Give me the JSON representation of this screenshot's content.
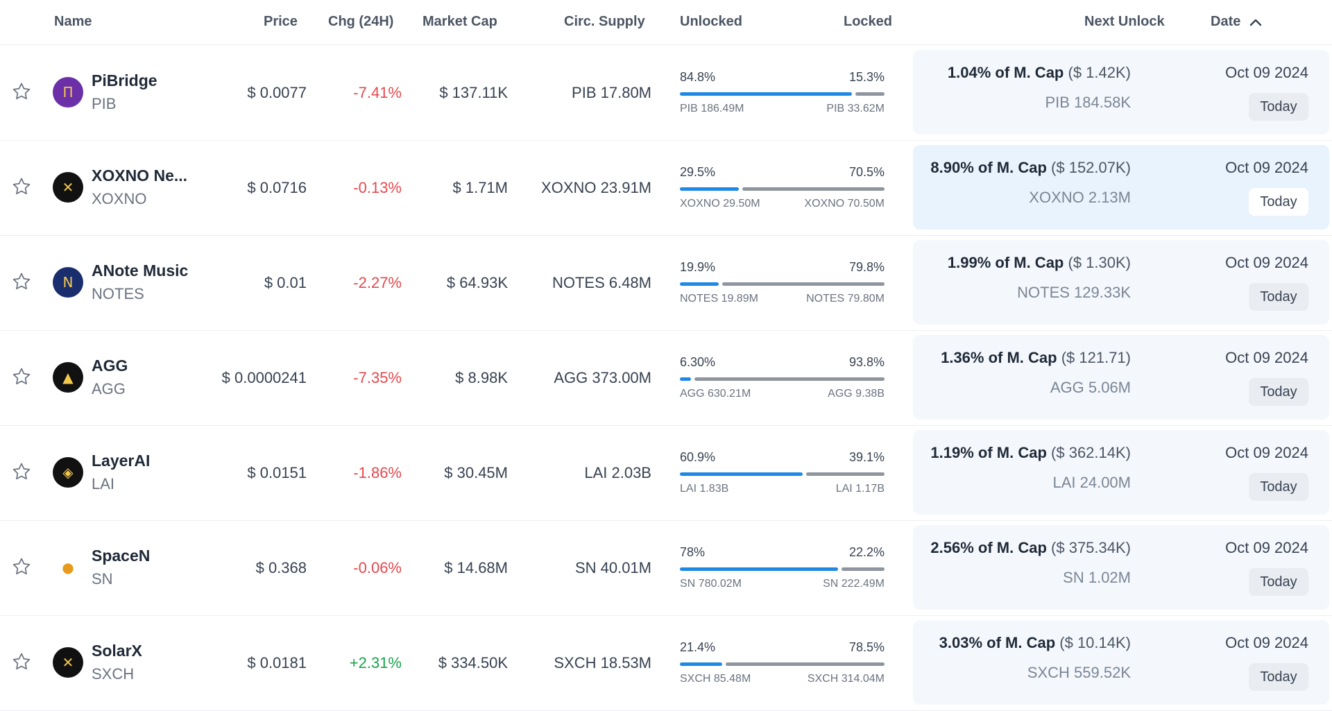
{
  "header": {
    "name": "Name",
    "price": "Price",
    "change": "Chg (24H)",
    "market_cap": "Market Cap",
    "circ_supply": "Circ. Supply",
    "unlocked": "Unlocked",
    "locked": "Locked",
    "next_unlock": "Next Unlock",
    "date": "Date",
    "date_sort_icon": "chevron-up-icon"
  },
  "colors": {
    "unlocked_bar": "#1e88e5",
    "locked_bar": "#8e959e",
    "negative": "#e5484d",
    "positive": "#16a34a",
    "card_bg": "#f4f8fd",
    "card_highlight": "#e8f3fd"
  },
  "rows": [
    {
      "name": "PiBridge",
      "symbol": "PIB",
      "price": "$ 0.0077",
      "change": "-7.41%",
      "trend": "down",
      "market_cap": "$ 137.11K",
      "circ_supply": "PIB 17.80M",
      "unlocked_pct": "84.8%",
      "locked_pct": "15.3%",
      "unlocked_amount": "PIB 186.49M",
      "locked_amount": "PIB 33.62M",
      "unlock_pct": "1.04% of M. Cap",
      "unlock_value": "($ 1.42K)",
      "unlock_amount": "PIB 184.58K",
      "date": "Oct 09 2024",
      "badge": "Today",
      "unlocked_fraction": 0.848,
      "logo_color": "#6b2fa8",
      "logo_glyph": "Π",
      "highlighted": false
    },
    {
      "name": "XOXNO Ne...",
      "symbol": "XOXNO",
      "price": "$ 0.0716",
      "change": "-0.13%",
      "trend": "down",
      "market_cap": "$ 1.71M",
      "circ_supply": "XOXNO 23.91M",
      "unlocked_pct": "29.5%",
      "locked_pct": "70.5%",
      "unlocked_amount": "XOXNO 29.50M",
      "locked_amount": "XOXNO 70.50M",
      "unlock_pct": "8.90% of M. Cap",
      "unlock_value": "($ 152.07K)",
      "unlock_amount": "XOXNO 2.13M",
      "date": "Oct 09 2024",
      "badge": "Today",
      "unlocked_fraction": 0.295,
      "logo_color": "#111111",
      "logo_glyph": "✕",
      "highlighted": true
    },
    {
      "name": "ANote Music",
      "symbol": "NOTES",
      "price": "$ 0.01",
      "change": "-2.27%",
      "trend": "down",
      "market_cap": "$ 64.93K",
      "circ_supply": "NOTES 6.48M",
      "unlocked_pct": "19.9%",
      "locked_pct": "79.8%",
      "unlocked_amount": "NOTES 19.89M",
      "locked_amount": "NOTES 79.80M",
      "unlock_pct": "1.99% of M. Cap",
      "unlock_value": "($ 1.30K)",
      "unlock_amount": "NOTES 129.33K",
      "date": "Oct 09 2024",
      "badge": "Today",
      "unlocked_fraction": 0.199,
      "logo_color": "#1a2e6e",
      "logo_glyph": "N",
      "highlighted": false
    },
    {
      "name": "AGG",
      "symbol": "AGG",
      "price": "$ 0.0000241",
      "change": "-7.35%",
      "trend": "down",
      "market_cap": "$ 8.98K",
      "circ_supply": "AGG 373.00M",
      "unlocked_pct": "6.30%",
      "locked_pct": "93.8%",
      "unlocked_amount": "AGG 630.21M",
      "locked_amount": "AGG 9.38B",
      "unlock_pct": "1.36% of M. Cap",
      "unlock_value": "($ 121.71)",
      "unlock_amount": "AGG 5.06M",
      "date": "Oct 09 2024",
      "badge": "Today",
      "unlocked_fraction": 0.063,
      "logo_color": "#111111",
      "logo_glyph": "▲",
      "highlighted": false
    },
    {
      "name": "LayerAI",
      "symbol": "LAI",
      "price": "$ 0.0151",
      "change": "-1.86%",
      "trend": "down",
      "market_cap": "$ 30.45M",
      "circ_supply": "LAI 2.03B",
      "unlocked_pct": "60.9%",
      "locked_pct": "39.1%",
      "unlocked_amount": "LAI 1.83B",
      "locked_amount": "LAI 1.17B",
      "unlock_pct": "1.19% of M. Cap",
      "unlock_value": "($ 362.14K)",
      "unlock_amount": "LAI 24.00M",
      "date": "Oct 09 2024",
      "badge": "Today",
      "unlocked_fraction": 0.609,
      "logo_color": "#111111",
      "logo_glyph": "◈",
      "highlighted": false
    },
    {
      "name": "SpaceN",
      "symbol": "SN",
      "price": "$ 0.368",
      "change": "-0.06%",
      "trend": "down",
      "market_cap": "$ 14.68M",
      "circ_supply": "SN 40.01M",
      "unlocked_pct": "78%",
      "locked_pct": "22.2%",
      "unlocked_amount": "SN 780.02M",
      "locked_amount": "SN 222.49M",
      "unlock_pct": "2.56% of M. Cap",
      "unlock_value": "($ 375.34K)",
      "unlock_amount": "SN 1.02M",
      "date": "Oct 09 2024",
      "badge": "Today",
      "unlocked_fraction": 0.78,
      "logo_color": "#ffffff",
      "logo_glyph": "●",
      "highlighted": false
    },
    {
      "name": "SolarX",
      "symbol": "SXCH",
      "price": "$ 0.0181",
      "change": "+2.31%",
      "trend": "up",
      "market_cap": "$ 334.50K",
      "circ_supply": "SXCH 18.53M",
      "unlocked_pct": "21.4%",
      "locked_pct": "78.5%",
      "unlocked_amount": "SXCH 85.48M",
      "locked_amount": "SXCH 314.04M",
      "unlock_pct": "3.03% of M. Cap",
      "unlock_value": "($ 10.14K)",
      "unlock_amount": "SXCH 559.52K",
      "date": "Oct 09 2024",
      "badge": "Today",
      "unlocked_fraction": 0.214,
      "logo_color": "#111111",
      "logo_glyph": "✕",
      "highlighted": false
    }
  ]
}
